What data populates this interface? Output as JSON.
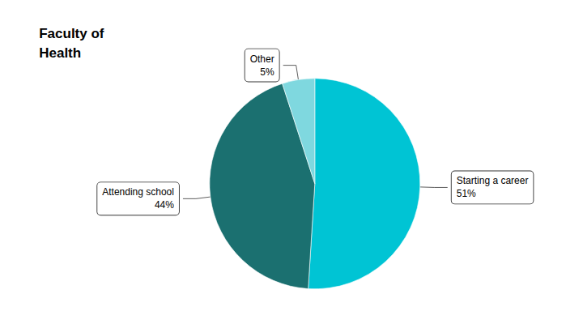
{
  "chart_data": {
    "type": "pie",
    "title": "Faculty of\nHealth",
    "categories": [
      "Starting a career",
      "Attending school",
      "Other"
    ],
    "values": [
      51,
      44,
      5
    ],
    "value_labels": [
      "51%",
      "44%",
      "5%"
    ],
    "colors": [
      "#00C4D4",
      "#1B7070",
      "#7FD8DF"
    ],
    "data_labels": true
  }
}
